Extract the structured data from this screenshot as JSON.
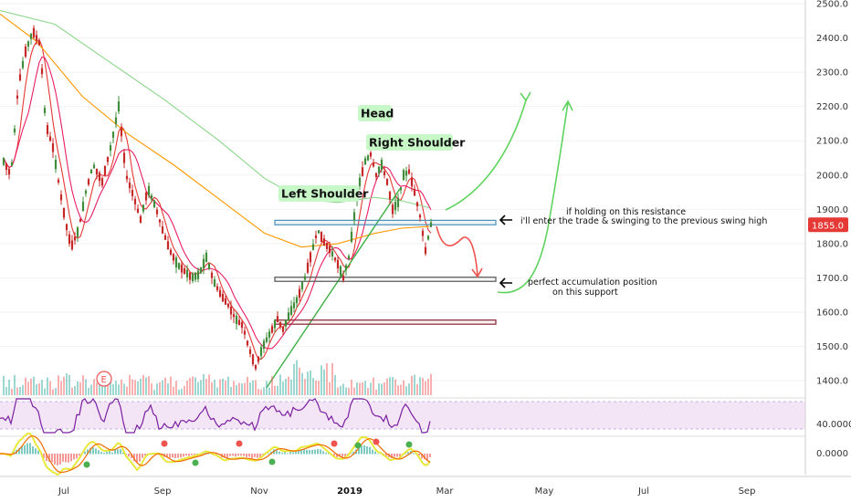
{
  "chart_data": {
    "type": "candlestick",
    "price_axis": {
      "ticks": [
        "2500.0",
        "2400.0",
        "2300.0",
        "2200.0",
        "2100.0",
        "2000.0",
        "1900.0",
        "1800.0",
        "1700.0",
        "1600.0",
        "1500.0",
        "1400.0"
      ],
      "range": [
        1360,
        2510
      ],
      "current_price": "1855.0"
    },
    "x_axis": {
      "labels": [
        "Jul",
        "Sep",
        "Nov",
        "2019",
        "Mar",
        "May",
        "Jul",
        "Sep"
      ]
    },
    "rsi": {
      "tick": "40.0000"
    },
    "macd": {
      "tick": "0.0000"
    },
    "zones": [
      {
        "name": "resistance-zone",
        "price_low": 1855,
        "price_high": 1868
      },
      {
        "name": "support-zone",
        "price_low": 1690,
        "price_high": 1702
      },
      {
        "name": "lower-support-zone",
        "price_low": 1565,
        "price_high": 1577
      }
    ],
    "pattern_labels": {
      "left_shoulder": "Left Shoulder",
      "head": "Head",
      "right_shoulder": "Right Shoulder"
    },
    "annotations": {
      "resistance_line1": "if holding on this resistance",
      "resistance_line2": "i'll enter the trade & swinging to the previous swing high",
      "support_line1": "perfect accumulation position",
      "support_line2": "on this support"
    },
    "event_badge": "E",
    "colors": {
      "up": "#26a69a",
      "down": "#ef5350",
      "candle_up": "#3f8c3a",
      "candle_down": "#c62828",
      "ma_fast": "#e53935",
      "ma_mid": "#e91e63",
      "ma_slow": "#ff9800",
      "ma_long": "#8bd68b",
      "rsi": "#7b1fa2",
      "rsi_band": "#f3e5f5",
      "arrow_green": "#5ed35e",
      "arrow_red": "#ef5350",
      "zone_resistance": "#4a90b8",
      "zone_support": "#555555",
      "zone_low": "#8e2030",
      "badge_bg": "#c8f7c8",
      "price_tag": "#e53935"
    }
  }
}
